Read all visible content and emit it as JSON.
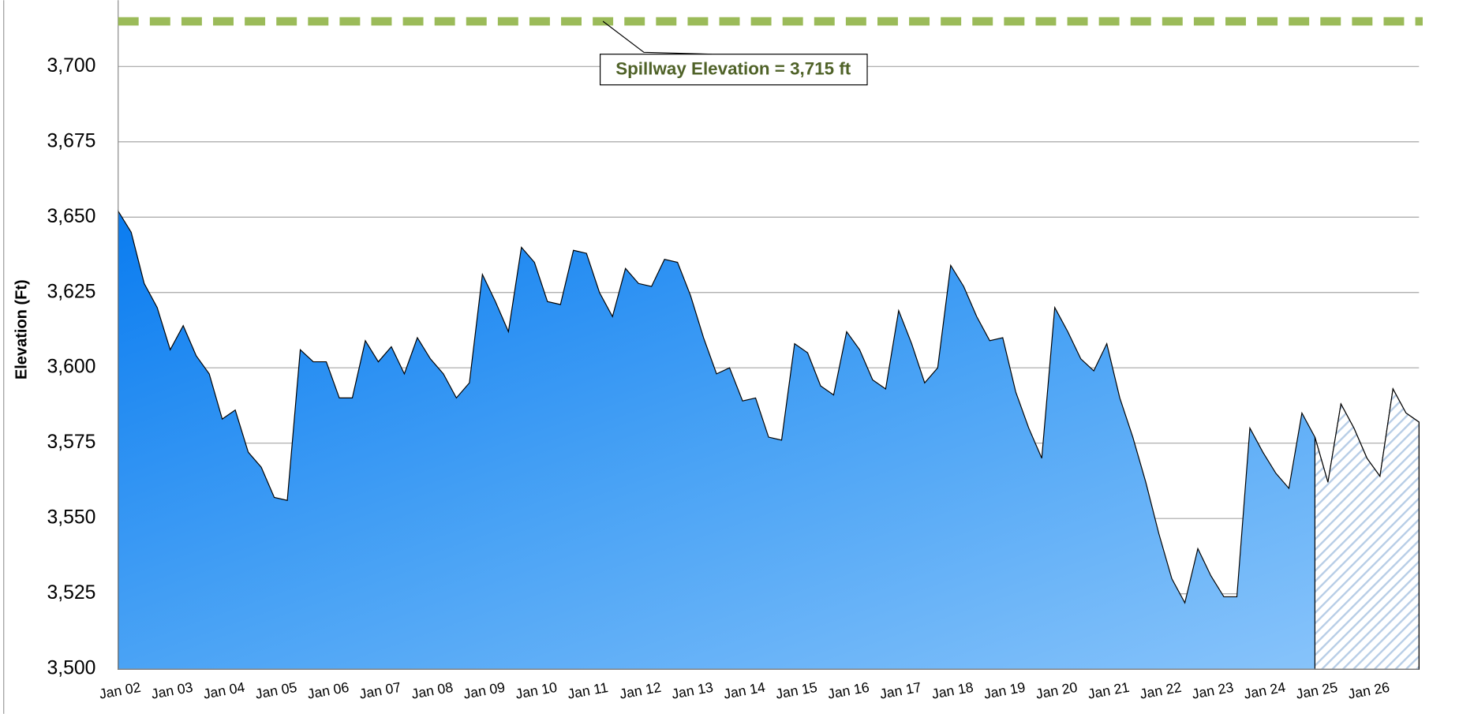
{
  "chart_data": {
    "type": "area",
    "y_label": "Elevation (Ft)",
    "categories": [
      "Jan 02",
      null,
      null,
      null,
      "Jan 03",
      null,
      null,
      null,
      "Jan 04",
      null,
      null,
      null,
      "Jan 05",
      null,
      null,
      null,
      "Jan 06",
      null,
      null,
      null,
      "Jan 07",
      null,
      null,
      null,
      "Jan 08",
      null,
      null,
      null,
      "Jan 09",
      null,
      null,
      null,
      "Jan 10",
      null,
      null,
      null,
      "Jan 11",
      null,
      null,
      null,
      "Jan 12",
      null,
      null,
      null,
      "Jan 13",
      null,
      null,
      null,
      "Jan 14",
      null,
      null,
      null,
      "Jan 15",
      null,
      null,
      null,
      "Jan 16",
      null,
      null,
      null,
      "Jan 17",
      null,
      null,
      null,
      "Jan 18",
      null,
      null,
      null,
      "Jan 19",
      null,
      null,
      null,
      "Jan 20",
      null,
      null,
      null,
      "Jan 21",
      null,
      null,
      null,
      "Jan 22",
      null,
      null,
      null,
      "Jan 23",
      null,
      null,
      null,
      "Jan 24",
      null,
      null,
      null,
      "Jan 25",
      null,
      null,
      null,
      "Jan 26",
      null,
      null,
      null,
      null
    ],
    "values": [
      3652,
      3645,
      3628,
      3620,
      3606,
      3614,
      3604,
      3598,
      3583,
      3586,
      3572,
      3567,
      3557,
      3556,
      3606,
      3602,
      3602,
      3590,
      3590,
      3609,
      3602,
      3607,
      3598,
      3610,
      3603,
      3598,
      3590,
      3595,
      3631,
      3622,
      3612,
      3640,
      3635,
      3622,
      3621,
      3639,
      3638,
      3625,
      3617,
      3633,
      3628,
      3627,
      3636,
      3635,
      3624,
      3610,
      3598,
      3600,
      3589,
      3590,
      3577,
      3576,
      3608,
      3605,
      3594,
      3591,
      3612,
      3606,
      3596,
      3593,
      3619,
      3608,
      3595,
      3600,
      3634,
      3627,
      3617,
      3609,
      3610,
      3592,
      3580,
      3570,
      3620,
      3612,
      3603,
      3599,
      3608,
      3590,
      3577,
      3562,
      3545,
      3530,
      3522,
      3540,
      3531,
      3524,
      3524,
      3580,
      3572,
      3565,
      3560,
      3585,
      3577,
      3562,
      3588,
      3580,
      3570,
      3564,
      3593,
      3585,
      3582
    ],
    "color": "#2b8cf0",
    "hatch_from": 92,
    "ylim": [
      3500,
      3722
    ],
    "yticks": [
      {
        "value": 3500,
        "label": "3,500"
      },
      {
        "value": 3525,
        "label": "3,525"
      },
      {
        "value": 3550,
        "label": "3,550"
      },
      {
        "value": 3575,
        "label": "3,575"
      },
      {
        "value": 3600,
        "label": "3,600"
      },
      {
        "value": 3625,
        "label": "3,625"
      },
      {
        "value": 3650,
        "label": "3,650"
      },
      {
        "value": 3675,
        "label": "3,675"
      },
      {
        "value": 3700,
        "label": "3,700"
      }
    ],
    "grid": true,
    "reference_line": {
      "value": 3715,
      "label": "Spillway Elevation = 3,715 ft",
      "color": "#9bbb59"
    }
  }
}
